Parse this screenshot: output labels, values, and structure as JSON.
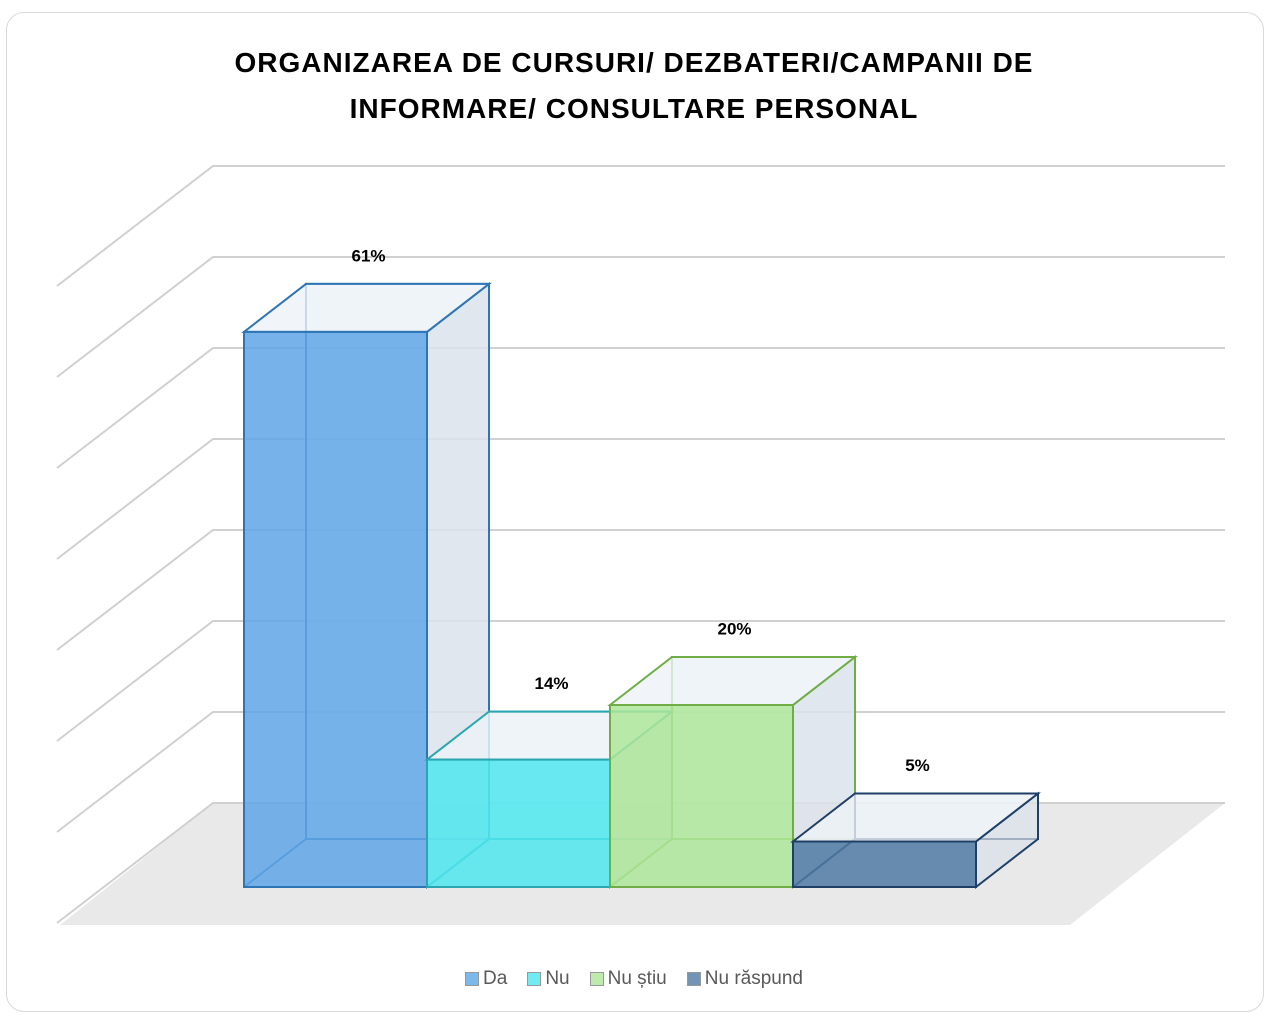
{
  "chart_data": {
    "type": "bar3d",
    "title": "ORGANIZAREA DE CURSURI/ DEZBATERI/CAMPANII DE INFORMARE/ CONSULTARE PERSONAL",
    "ylim": [
      0,
      70
    ],
    "yticks": [
      0,
      10,
      20,
      30,
      40,
      50,
      60,
      70
    ],
    "grid": true,
    "legend": "bottom",
    "series": [
      {
        "name": "Da",
        "color": "#5fa6e6",
        "values": [
          61
        ],
        "value_labels": [
          "61%"
        ]
      },
      {
        "name": "Nu",
        "color": "#4fe6ee",
        "values": [
          14
        ],
        "value_labels": [
          "14%"
        ]
      },
      {
        "name": "Nu știu",
        "color": "#aee69a",
        "values": [
          20
        ],
        "value_labels": [
          "20%"
        ]
      },
      {
        "name": "Nu răspund",
        "color": "#4f7aa3",
        "values": [
          5
        ],
        "value_labels": [
          "5%"
        ]
      }
    ]
  }
}
